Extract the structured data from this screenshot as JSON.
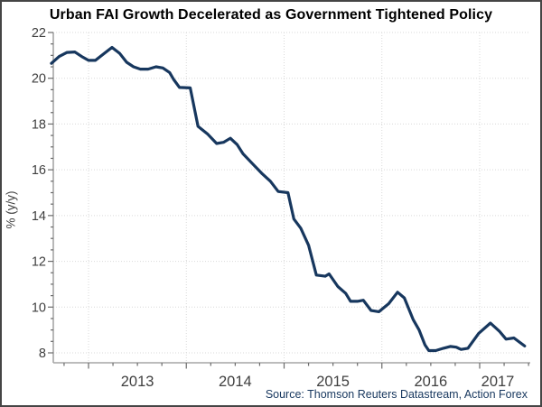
{
  "title": "Urban FAI Growth Decelerated as Government Tightened Policy",
  "source_note": "Source: Thomson Reuters Datastream, Action Forex",
  "y_axis_label": "% (y/y)",
  "chart_data": {
    "type": "line",
    "title": "Urban FAI Growth Decelerated as Government Tightened Policy",
    "xlabel": "",
    "ylabel": "% (y/y)",
    "x_tick_years": [
      2013,
      2014,
      2015,
      2016,
      2017
    ],
    "x_minor_step_years": 0.25,
    "y_ticks": [
      8,
      10,
      12,
      14,
      16,
      18,
      20,
      22
    ],
    "y_minor_step": 0.5,
    "ylim": [
      7.57,
      22
    ],
    "xlim": [
      2012.63,
      2017.52
    ],
    "grid": "dotted major gridlines, both axes",
    "legend_position": "none",
    "x": [
      2012.62,
      2012.7,
      2012.78,
      2012.86,
      2012.93,
      2013.0,
      2013.07,
      2013.15,
      2013.24,
      2013.32,
      2013.39,
      2013.46,
      2013.53,
      2013.61,
      2013.69,
      2013.76,
      2013.83,
      2013.87,
      2013.93,
      2014.04,
      2014.12,
      2014.22,
      2014.31,
      2014.38,
      2014.45,
      2014.52,
      2014.58,
      2014.68,
      2014.77,
      2014.86,
      2014.94,
      2015.04,
      2015.1,
      2015.17,
      2015.25,
      2015.33,
      2015.42,
      2015.46,
      2015.55,
      2015.63,
      2015.68,
      2015.75,
      2015.81,
      2015.89,
      2015.97,
      2016.07,
      2016.16,
      2016.23,
      2016.32,
      2016.38,
      2016.44,
      2016.48,
      2016.55,
      2016.63,
      2016.7,
      2016.76,
      2016.81,
      2016.88,
      2016.99,
      2017.11,
      2017.2,
      2017.27,
      2017.35,
      2017.46
    ],
    "values": [
      20.65,
      20.95,
      21.13,
      21.15,
      20.95,
      20.78,
      20.78,
      21.05,
      21.35,
      21.08,
      20.7,
      20.5,
      20.4,
      20.4,
      20.5,
      20.45,
      20.25,
      19.95,
      19.6,
      19.58,
      17.9,
      17.55,
      17.15,
      17.2,
      17.38,
      17.1,
      16.7,
      16.25,
      15.85,
      15.5,
      15.05,
      15.0,
      13.85,
      13.45,
      12.7,
      11.4,
      11.35,
      11.45,
      10.9,
      10.6,
      10.25,
      10.25,
      10.3,
      9.85,
      9.8,
      10.15,
      10.65,
      10.4,
      9.45,
      9.0,
      8.35,
      8.1,
      8.1,
      8.2,
      8.28,
      8.25,
      8.15,
      8.2,
      8.85,
      9.3,
      8.95,
      8.6,
      8.65,
      8.3
    ]
  },
  "style": {
    "line_color": "#17375e",
    "axis_color": "#a6a6a6",
    "tick_color": "#6b6b6b",
    "grid_color": "#d9d9d9",
    "tick_text_color": "#3f3f3f",
    "title_color": "#000000",
    "source_color": "#17375e",
    "border_color": "#454545",
    "background": "#ffffff"
  }
}
